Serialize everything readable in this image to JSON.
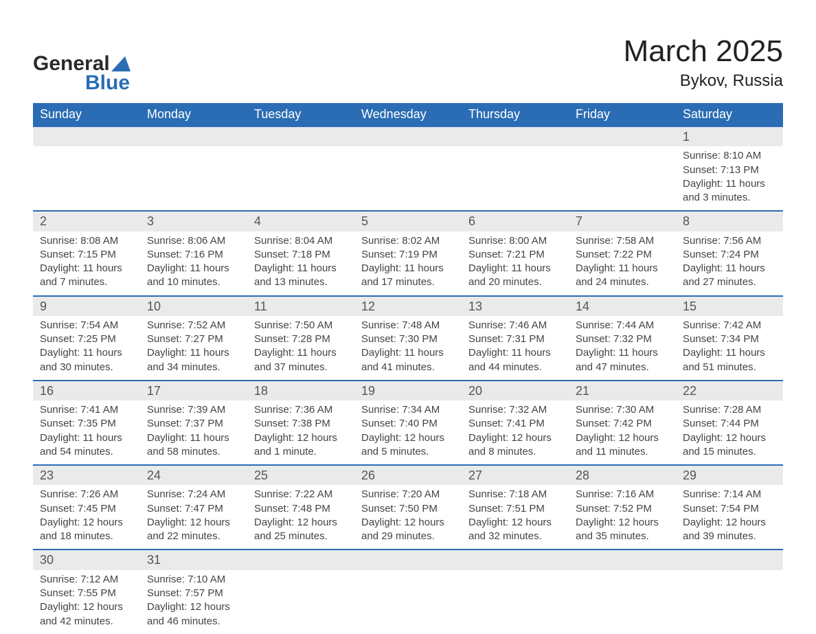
{
  "logo": {
    "text_a": "General",
    "text_b": "Blue",
    "glyph_color": "#2a6db4",
    "text_color_a": "#2a2a2a"
  },
  "title": "March 2025",
  "location": "Bykov, Russia",
  "colors": {
    "header_bg": "#2a6db4",
    "header_text": "#ffffff",
    "daynum_bg": "#eaeaea",
    "border": "#2a6db4",
    "body_text": "#444444"
  },
  "weekdays": [
    "Sunday",
    "Monday",
    "Tuesday",
    "Wednesday",
    "Thursday",
    "Friday",
    "Saturday"
  ],
  "weeks": [
    [
      null,
      null,
      null,
      null,
      null,
      null,
      {
        "n": "1",
        "sr": "Sunrise: 8:10 AM",
        "ss": "Sunset: 7:13 PM",
        "d1": "Daylight: 11 hours",
        "d2": "and 3 minutes."
      }
    ],
    [
      {
        "n": "2",
        "sr": "Sunrise: 8:08 AM",
        "ss": "Sunset: 7:15 PM",
        "d1": "Daylight: 11 hours",
        "d2": "and 7 minutes."
      },
      {
        "n": "3",
        "sr": "Sunrise: 8:06 AM",
        "ss": "Sunset: 7:16 PM",
        "d1": "Daylight: 11 hours",
        "d2": "and 10 minutes."
      },
      {
        "n": "4",
        "sr": "Sunrise: 8:04 AM",
        "ss": "Sunset: 7:18 PM",
        "d1": "Daylight: 11 hours",
        "d2": "and 13 minutes."
      },
      {
        "n": "5",
        "sr": "Sunrise: 8:02 AM",
        "ss": "Sunset: 7:19 PM",
        "d1": "Daylight: 11 hours",
        "d2": "and 17 minutes."
      },
      {
        "n": "6",
        "sr": "Sunrise: 8:00 AM",
        "ss": "Sunset: 7:21 PM",
        "d1": "Daylight: 11 hours",
        "d2": "and 20 minutes."
      },
      {
        "n": "7",
        "sr": "Sunrise: 7:58 AM",
        "ss": "Sunset: 7:22 PM",
        "d1": "Daylight: 11 hours",
        "d2": "and 24 minutes."
      },
      {
        "n": "8",
        "sr": "Sunrise: 7:56 AM",
        "ss": "Sunset: 7:24 PM",
        "d1": "Daylight: 11 hours",
        "d2": "and 27 minutes."
      }
    ],
    [
      {
        "n": "9",
        "sr": "Sunrise: 7:54 AM",
        "ss": "Sunset: 7:25 PM",
        "d1": "Daylight: 11 hours",
        "d2": "and 30 minutes."
      },
      {
        "n": "10",
        "sr": "Sunrise: 7:52 AM",
        "ss": "Sunset: 7:27 PM",
        "d1": "Daylight: 11 hours",
        "d2": "and 34 minutes."
      },
      {
        "n": "11",
        "sr": "Sunrise: 7:50 AM",
        "ss": "Sunset: 7:28 PM",
        "d1": "Daylight: 11 hours",
        "d2": "and 37 minutes."
      },
      {
        "n": "12",
        "sr": "Sunrise: 7:48 AM",
        "ss": "Sunset: 7:30 PM",
        "d1": "Daylight: 11 hours",
        "d2": "and 41 minutes."
      },
      {
        "n": "13",
        "sr": "Sunrise: 7:46 AM",
        "ss": "Sunset: 7:31 PM",
        "d1": "Daylight: 11 hours",
        "d2": "and 44 minutes."
      },
      {
        "n": "14",
        "sr": "Sunrise: 7:44 AM",
        "ss": "Sunset: 7:32 PM",
        "d1": "Daylight: 11 hours",
        "d2": "and 47 minutes."
      },
      {
        "n": "15",
        "sr": "Sunrise: 7:42 AM",
        "ss": "Sunset: 7:34 PM",
        "d1": "Daylight: 11 hours",
        "d2": "and 51 minutes."
      }
    ],
    [
      {
        "n": "16",
        "sr": "Sunrise: 7:41 AM",
        "ss": "Sunset: 7:35 PM",
        "d1": "Daylight: 11 hours",
        "d2": "and 54 minutes."
      },
      {
        "n": "17",
        "sr": "Sunrise: 7:39 AM",
        "ss": "Sunset: 7:37 PM",
        "d1": "Daylight: 11 hours",
        "d2": "and 58 minutes."
      },
      {
        "n": "18",
        "sr": "Sunrise: 7:36 AM",
        "ss": "Sunset: 7:38 PM",
        "d1": "Daylight: 12 hours",
        "d2": "and 1 minute."
      },
      {
        "n": "19",
        "sr": "Sunrise: 7:34 AM",
        "ss": "Sunset: 7:40 PM",
        "d1": "Daylight: 12 hours",
        "d2": "and 5 minutes."
      },
      {
        "n": "20",
        "sr": "Sunrise: 7:32 AM",
        "ss": "Sunset: 7:41 PM",
        "d1": "Daylight: 12 hours",
        "d2": "and 8 minutes."
      },
      {
        "n": "21",
        "sr": "Sunrise: 7:30 AM",
        "ss": "Sunset: 7:42 PM",
        "d1": "Daylight: 12 hours",
        "d2": "and 11 minutes."
      },
      {
        "n": "22",
        "sr": "Sunrise: 7:28 AM",
        "ss": "Sunset: 7:44 PM",
        "d1": "Daylight: 12 hours",
        "d2": "and 15 minutes."
      }
    ],
    [
      {
        "n": "23",
        "sr": "Sunrise: 7:26 AM",
        "ss": "Sunset: 7:45 PM",
        "d1": "Daylight: 12 hours",
        "d2": "and 18 minutes."
      },
      {
        "n": "24",
        "sr": "Sunrise: 7:24 AM",
        "ss": "Sunset: 7:47 PM",
        "d1": "Daylight: 12 hours",
        "d2": "and 22 minutes."
      },
      {
        "n": "25",
        "sr": "Sunrise: 7:22 AM",
        "ss": "Sunset: 7:48 PM",
        "d1": "Daylight: 12 hours",
        "d2": "and 25 minutes."
      },
      {
        "n": "26",
        "sr": "Sunrise: 7:20 AM",
        "ss": "Sunset: 7:50 PM",
        "d1": "Daylight: 12 hours",
        "d2": "and 29 minutes."
      },
      {
        "n": "27",
        "sr": "Sunrise: 7:18 AM",
        "ss": "Sunset: 7:51 PM",
        "d1": "Daylight: 12 hours",
        "d2": "and 32 minutes."
      },
      {
        "n": "28",
        "sr": "Sunrise: 7:16 AM",
        "ss": "Sunset: 7:52 PM",
        "d1": "Daylight: 12 hours",
        "d2": "and 35 minutes."
      },
      {
        "n": "29",
        "sr": "Sunrise: 7:14 AM",
        "ss": "Sunset: 7:54 PM",
        "d1": "Daylight: 12 hours",
        "d2": "and 39 minutes."
      }
    ],
    [
      {
        "n": "30",
        "sr": "Sunrise: 7:12 AM",
        "ss": "Sunset: 7:55 PM",
        "d1": "Daylight: 12 hours",
        "d2": "and 42 minutes."
      },
      {
        "n": "31",
        "sr": "Sunrise: 7:10 AM",
        "ss": "Sunset: 7:57 PM",
        "d1": "Daylight: 12 hours",
        "d2": "and 46 minutes."
      },
      null,
      null,
      null,
      null,
      null
    ]
  ]
}
